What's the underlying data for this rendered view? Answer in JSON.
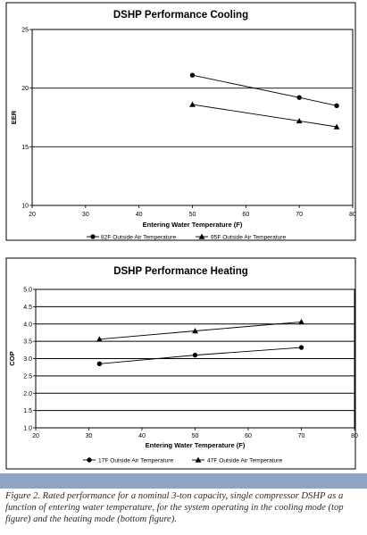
{
  "chart_data": [
    {
      "type": "line",
      "title": "DSHP Performance Cooling",
      "xlabel": "Entering Water Temperature (F)",
      "ylabel": "EER",
      "xlim": [
        20,
        80
      ],
      "ylim": [
        10,
        25
      ],
      "xticks": [
        20,
        30,
        40,
        50,
        60,
        70,
        80
      ],
      "yticks": [
        10,
        15,
        20,
        25
      ],
      "gridlines_y": [
        15,
        20
      ],
      "legend_position": "bottom",
      "series": [
        {
          "name": "82F Outside Air Temperature",
          "marker": "circle",
          "x": [
            50,
            70,
            77
          ],
          "y": [
            21.1,
            19.2,
            18.5
          ]
        },
        {
          "name": "95F Outside Air Temperature",
          "marker": "triangle",
          "x": [
            50,
            70,
            77
          ],
          "y": [
            18.6,
            17.2,
            16.7
          ]
        }
      ]
    },
    {
      "type": "line",
      "title": "DSHP Performance Heating",
      "xlabel": "Entering Water Temperature (F)",
      "ylabel": "COP",
      "xlim": [
        20,
        80
      ],
      "ylim": [
        1.0,
        5.0
      ],
      "xticks": [
        20,
        30,
        40,
        50,
        60,
        70,
        80
      ],
      "yticks": [
        1.0,
        1.5,
        2.0,
        2.5,
        3.0,
        3.5,
        4.0,
        4.5,
        5.0
      ],
      "ytick_labels": [
        "1.0",
        "1.5",
        "2.0",
        "2.5",
        "3.0",
        "3.5",
        "4.0",
        "4.5",
        "5.0"
      ],
      "gridlines_y": [
        1.5,
        2.0,
        2.5,
        3.0,
        3.5,
        4.0,
        4.5
      ],
      "legend_position": "bottom",
      "series": [
        {
          "name": "17F Outside Air Temperature",
          "marker": "circle",
          "x": [
            32,
            50,
            70
          ],
          "y": [
            2.85,
            3.1,
            3.32
          ]
        },
        {
          "name": "47F Outside Air Temperature",
          "marker": "triangle",
          "x": [
            32,
            50,
            70
          ],
          "y": [
            3.56,
            3.8,
            4.06
          ]
        }
      ]
    }
  ],
  "caption": "Figure 2.  Rated performance for a nominal 3-ton capacity, single compressor DSHP as a function of entering water temperature, for the system operating in the cooling mode (top figure) and the heating mode (bottom figure).",
  "colors": {
    "band": "#8fa3c4",
    "ink": "#000000",
    "caption_text": "#2a2a2a"
  }
}
